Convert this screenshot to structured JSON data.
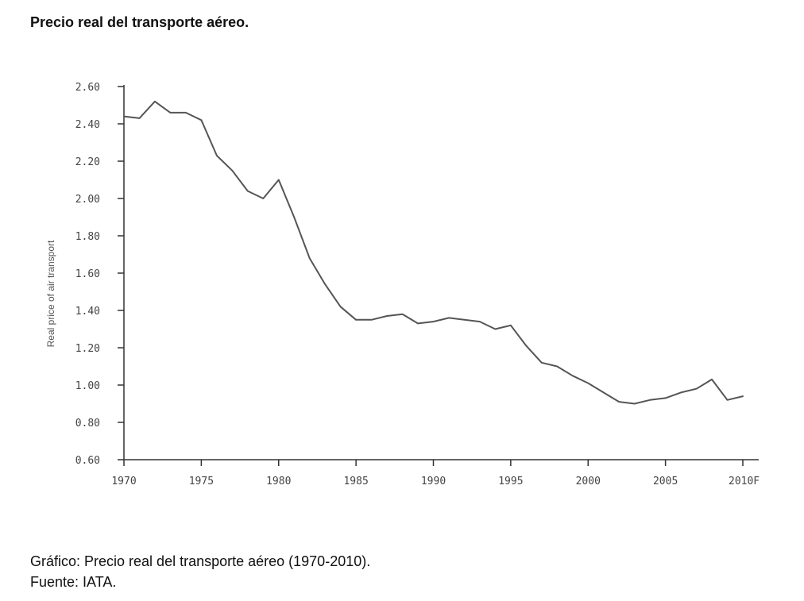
{
  "page": {
    "title": "Precio real del transporte aéreo.",
    "caption_line1": "Gráfico: Precio real del transporte aéreo (1970-2010).",
    "caption_line2": "Fuente: IATA."
  },
  "chart_data": {
    "type": "line",
    "title": "",
    "xlabel": "",
    "ylabel": "Real price of air transport",
    "xlim": [
      1970,
      2010
    ],
    "ylim": [
      0.6,
      2.6
    ],
    "x_ticks": [
      1970,
      1975,
      1980,
      1985,
      1990,
      1995,
      2000,
      2005,
      2010
    ],
    "x_tick_labels": [
      "1970",
      "1975",
      "1980",
      "1985",
      "1990",
      "1995",
      "2000",
      "2005",
      "2010F"
    ],
    "y_ticks": [
      0.6,
      0.8,
      1.0,
      1.2,
      1.4,
      1.6,
      1.8,
      2.0,
      2.2,
      2.4,
      2.6
    ],
    "y_tick_labels": [
      "0.60",
      "0.80",
      "1.00",
      "1.20",
      "1.40",
      "1.60",
      "1.80",
      "2.00",
      "2.20",
      "2.40",
      "2.60"
    ],
    "grid": false,
    "series": [
      {
        "color": "#555555",
        "x": [
          1970,
          1971,
          1972,
          1973,
          1974,
          1975,
          1976,
          1977,
          1978,
          1979,
          1980,
          1981,
          1982,
          1983,
          1984,
          1985,
          1986,
          1987,
          1988,
          1989,
          1990,
          1991,
          1992,
          1993,
          1994,
          1995,
          1996,
          1997,
          1998,
          1999,
          2000,
          2001,
          2002,
          2003,
          2004,
          2005,
          2006,
          2007,
          2008,
          2009,
          2010
        ],
        "y": [
          2.44,
          2.43,
          2.52,
          2.46,
          2.46,
          2.42,
          2.23,
          2.15,
          2.04,
          2.0,
          2.1,
          1.9,
          1.68,
          1.54,
          1.42,
          1.35,
          1.35,
          1.37,
          1.38,
          1.33,
          1.34,
          1.36,
          1.35,
          1.34,
          1.3,
          1.32,
          1.21,
          1.12,
          1.1,
          1.05,
          1.01,
          0.96,
          0.91,
          0.9,
          0.92,
          0.93,
          0.96,
          0.98,
          1.03,
          0.92,
          0.94
        ]
      }
    ]
  }
}
